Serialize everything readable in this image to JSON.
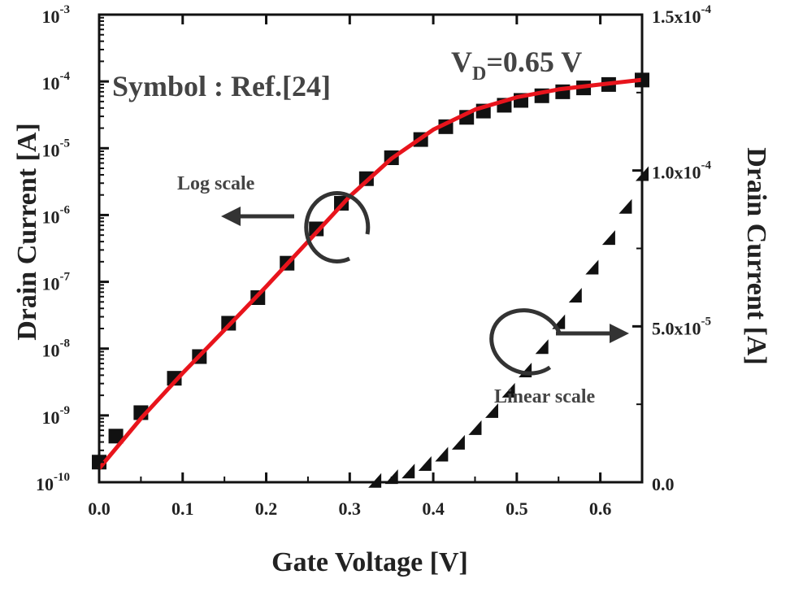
{
  "chart_data": {
    "type": "scatter",
    "title": "",
    "xlabel": "Gate Voltage [V]",
    "ylabel_left": "Drain Current [A]",
    "ylabel_right": "Drain Current [A]",
    "xlim": [
      0.0,
      0.65
    ],
    "ylim_left_log10": [
      -10,
      -3
    ],
    "ylim_right": [
      0.0,
      0.00015
    ],
    "x_ticks": [
      "0.0",
      "0.1",
      "0.2",
      "0.3",
      "0.4",
      "0.5",
      "0.6"
    ],
    "x_tick_values": [
      0.0,
      0.1,
      0.2,
      0.3,
      0.4,
      0.5,
      0.6
    ],
    "y_left_ticks": [
      {
        "mant": "10",
        "exp": "-3",
        "log": -3
      },
      {
        "mant": "10",
        "exp": "-4",
        "log": -4
      },
      {
        "mant": "10",
        "exp": "-5",
        "log": -5
      },
      {
        "mant": "10",
        "exp": "-6",
        "log": -6
      },
      {
        "mant": "10",
        "exp": "-7",
        "log": -7
      },
      {
        "mant": "10",
        "exp": "-8",
        "log": -8
      },
      {
        "mant": "10",
        "exp": "-9",
        "log": -9
      },
      {
        "mant": "10",
        "exp": "-10",
        "log": -10
      }
    ],
    "y_right_ticks": [
      {
        "mant": "1.5x10",
        "exp": "-4",
        "value": 0.00015
      },
      {
        "mant": "1.0x10",
        "exp": "-4",
        "value": 0.0001
      },
      {
        "mant": "5.0x10",
        "exp": "-5",
        "value": 5e-05
      },
      {
        "mant": "0.0",
        "exp": "",
        "value": 0.0
      }
    ],
    "annotations": {
      "bias_main": "V",
      "bias_sub": "D",
      "bias_rest": "=0.65 V",
      "symbol_note": "Symbol :  Ref.[24]",
      "log_label": "Log scale",
      "linear_label": "Linear scale"
    },
    "colors": {
      "line": "#e8141c",
      "symbol": "#111111",
      "annotation": "#444444"
    },
    "series": [
      {
        "axis": "left-log",
        "style": "square-markers",
        "x": [
          0.0,
          0.02,
          0.05,
          0.09,
          0.12,
          0.155,
          0.19,
          0.225,
          0.26,
          0.29,
          0.32,
          0.35,
          0.385,
          0.415,
          0.44,
          0.46,
          0.485,
          0.505,
          0.53,
          0.555,
          0.58,
          0.61,
          0.65
        ],
        "y": [
          2e-10,
          4.9e-10,
          1.1e-09,
          3.6e-09,
          7.6e-09,
          2.4e-08,
          5.8e-08,
          1.9e-07,
          6.2e-07,
          1.5e-06,
          3.5e-06,
          7.2e-06,
          1.35e-05,
          2.1e-05,
          2.9e-05,
          3.6e-05,
          4.4e-05,
          5.2e-05,
          6.1e-05,
          7e-05,
          8e-05,
          9e-05,
          0.000105
        ]
      },
      {
        "axis": "left-log",
        "style": "red-line",
        "x": [
          0.0,
          0.05,
          0.1,
          0.15,
          0.2,
          0.25,
          0.3,
          0.35,
          0.4,
          0.45,
          0.5,
          0.55,
          0.6,
          0.65
        ],
        "y": [
          1.6e-10,
          9e-10,
          4.3e-09,
          1.9e-08,
          8.5e-08,
          4e-07,
          1.9e-06,
          7e-06,
          1.9e-05,
          3.8e-05,
          5.8e-05,
          7.6e-05,
          9e-05,
          0.000106
        ]
      },
      {
        "axis": "right-linear",
        "style": "triangle-markers",
        "x": [
          0.33,
          0.35,
          0.37,
          0.39,
          0.41,
          0.43,
          0.45,
          0.47,
          0.49,
          0.51,
          0.53,
          0.55,
          0.57,
          0.59,
          0.61,
          0.63,
          0.65
        ],
        "y": [
          6e-07,
          1.8e-06,
          3.6e-06,
          6e-06,
          9e-06,
          1.28e-05,
          1.75e-05,
          2.3e-05,
          2.95e-05,
          3.6e-05,
          4.35e-05,
          5.15e-05,
          6e-05,
          6.9e-05,
          7.85e-05,
          8.85e-05,
          9.9e-05
        ]
      }
    ]
  }
}
